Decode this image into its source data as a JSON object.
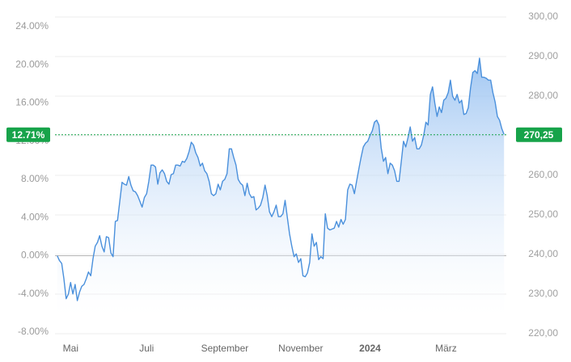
{
  "chart_data": {
    "type": "area",
    "color": "#4a90dc",
    "x": [
      0,
      1,
      2,
      3,
      4,
      5,
      6,
      7,
      8,
      9,
      10,
      11,
      12,
      13,
      14,
      15,
      16,
      17,
      18,
      19,
      20,
      21,
      22,
      23,
      24,
      25,
      26,
      27,
      28,
      29,
      30,
      31,
      32,
      33,
      34,
      35,
      36,
      37,
      38,
      39,
      40,
      41,
      42,
      43,
      44,
      45,
      46,
      47,
      48,
      49,
      50,
      51,
      52,
      53,
      54,
      55,
      56,
      57,
      58,
      59,
      60,
      61,
      62,
      63,
      64,
      65,
      66,
      67,
      68,
      69,
      70,
      71,
      72,
      73,
      74,
      75,
      76,
      77,
      78,
      79,
      80,
      81,
      82,
      83,
      84,
      85,
      86,
      87,
      88,
      89,
      90,
      91,
      92,
      93,
      94,
      95,
      96,
      97,
      98,
      99,
      100,
      101,
      102,
      103,
      104,
      105,
      106,
      107,
      108,
      109,
      110,
      111,
      112,
      113,
      114,
      115,
      116,
      117,
      118,
      119,
      120,
      121,
      122,
      123,
      124,
      125,
      126,
      127,
      128,
      129,
      130,
      131,
      132,
      133,
      134,
      135,
      136,
      137,
      138,
      139,
      140,
      141,
      142,
      143,
      144,
      145,
      146,
      147,
      148,
      149,
      150,
      151,
      152,
      153,
      154,
      155,
      156,
      157,
      158,
      159,
      160,
      161,
      162,
      163,
      164,
      165,
      166,
      167,
      168,
      169,
      170,
      171,
      172,
      173,
      174,
      175,
      176,
      177,
      178,
      179,
      180,
      181,
      182,
      183,
      184,
      185,
      186,
      187,
      188,
      189,
      190,
      191,
      192,
      193,
      194,
      195,
      196,
      197,
      198,
      199,
      200
    ],
    "values": [
      0,
      -0.5,
      -0.8,
      -2.4,
      -4.5,
      -4,
      -2.8,
      -4,
      -3,
      -4.7,
      -3.8,
      -3.2,
      -3,
      -2.4,
      -1.7,
      -2.1,
      -0.3,
      1,
      1.4,
      2.1,
      1,
      0.4,
      2,
      1.9,
      0.3,
      -0.1,
      3.6,
      3.7,
      5.7,
      7.7,
      7.5,
      7.4,
      8.3,
      7.4,
      6.8,
      6.7,
      6.3,
      5.7,
      5.1,
      6.1,
      6.5,
      7.8,
      9.5,
      9.5,
      9.3,
      7.5,
      8.7,
      9,
      8.6,
      7.8,
      7.5,
      8.5,
      8.6,
      9.5,
      9.5,
      9.4,
      9.9,
      9.8,
      10.2,
      10.9,
      11.9,
      11.6,
      10.8,
      10.3,
      9.4,
      9.7,
      8.9,
      8.6,
      7.8,
      6.5,
      6.3,
      6.5,
      7.5,
      6.9,
      7.8,
      8,
      8.6,
      11.2,
      11.2,
      10.3,
      9.5,
      8,
      7.6,
      7.4,
      6.3,
      7.6,
      6.5,
      6.1,
      6.2,
      4.8,
      5,
      5.3,
      6.1,
      7.4,
      6.3,
      4.6,
      4.1,
      4.6,
      5.3,
      4.1,
      4.1,
      4.4,
      5.8,
      4,
      2.3,
      1,
      -0.1,
      0.2,
      -0.7,
      -0.3,
      -2.1,
      -2.2,
      -1.8,
      -0.7,
      2.3,
      1,
      1.4,
      -0.4,
      -0.1,
      -0.3,
      4.4,
      2.9,
      2.7,
      2.8,
      2.9,
      3.6,
      3,
      3.8,
      3.3,
      3.8,
      6.9,
      7.5,
      7.4,
      6.5,
      7.8,
      9.1,
      10.3,
      11.4,
      11.8,
      12,
      12.6,
      13.1,
      14,
      14.2,
      13.7,
      11.3,
      9.9,
      10.3,
      8.6,
      9.7,
      9.5,
      8.9,
      7.8,
      7.8,
      9.9,
      12,
      11.4,
      12.4,
      13.5,
      12,
      12.4,
      11.2,
      11.2,
      11.6,
      12.6,
      14,
      13.7,
      16.9,
      17.7,
      16,
      14.6,
      15.6,
      15,
      16.3,
      16.5,
      17.1,
      18.4,
      16.7,
      16.3,
      16.9,
      16,
      16.3,
      14.8,
      14.9,
      15.5,
      17.6,
      19.2,
      19.4,
      19.1,
      20.7,
      18.7,
      18.7,
      18.6,
      18.4,
      18.4,
      17.1,
      16.1,
      14.6,
      14.2,
      13.3,
      12.71
    ],
    "xlim": [
      -1,
      201
    ],
    "xticks": [
      {
        "value": 6,
        "label": "Mai"
      },
      {
        "value": 40,
        "label": "Juli"
      },
      {
        "value": 75,
        "label": "September"
      },
      {
        "value": 109,
        "label": "November"
      },
      {
        "value": 140,
        "label": "2024"
      },
      {
        "value": 174,
        "label": "März"
      }
    ],
    "ylim": [
      -8.76,
      25.95
    ],
    "yticks": [
      {
        "value": -8,
        "label": "-8.00%"
      },
      {
        "value": -4,
        "label": "-4.00%"
      },
      {
        "value": 0,
        "label": "0.00%"
      },
      {
        "value": 4,
        "label": "4.00%"
      },
      {
        "value": 8,
        "label": "8.00%"
      },
      {
        "value": 12,
        "label": "12.00%"
      },
      {
        "value": 16,
        "label": "16.00%"
      },
      {
        "value": 20,
        "label": "20.00%"
      },
      {
        "value": 24,
        "label": "24.00%"
      }
    ],
    "y2lim": [
      218.57,
      302.24
    ],
    "y2ticks": [
      {
        "value": 220,
        "label": "220,00"
      },
      {
        "value": 230,
        "label": "230,00"
      },
      {
        "value": 240,
        "label": "240,00"
      },
      {
        "value": 250,
        "label": "250,00"
      },
      {
        "value": 260,
        "label": "260,00"
      },
      {
        "value": 270,
        "label": "270,00"
      },
      {
        "value": 280,
        "label": "280,00"
      },
      {
        "value": 290,
        "label": "290,00"
      },
      {
        "value": 300,
        "label": "300,00"
      }
    ],
    "grid": true,
    "current_pct": {
      "value": 12.71,
      "label": "12.71%"
    },
    "current_price": {
      "value": 270.25,
      "label": "270,25"
    },
    "current_color": "#17a34a"
  }
}
